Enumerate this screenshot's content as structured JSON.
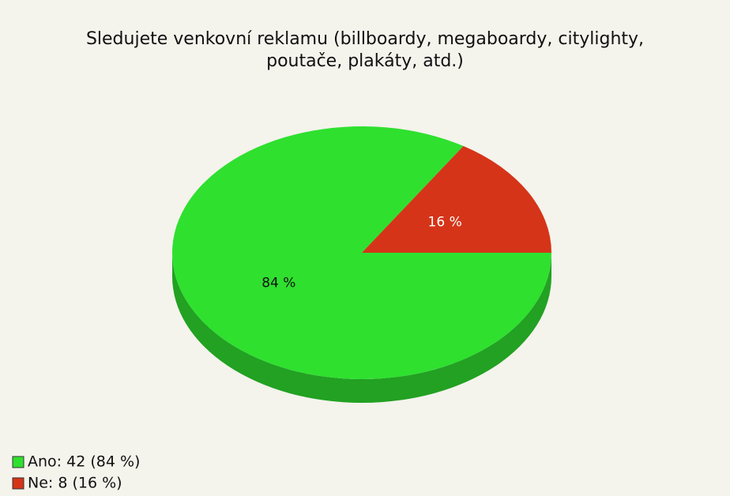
{
  "chart_data": {
    "type": "pie",
    "title": [
      "Sledujete venkovní reklamu (billboardy, megaboardy, citylighty,",
      "poutače, plakáty, atd.)"
    ],
    "categories": [
      "Ano: 42 (84 %)",
      "Ne: 8 (16 %)"
    ],
    "values": [
      84,
      16
    ],
    "value_labels": [
      "84 %",
      "16 %"
    ],
    "colors": [
      "#2fe02f",
      "#d53418"
    ],
    "legend": "bottom-left"
  }
}
